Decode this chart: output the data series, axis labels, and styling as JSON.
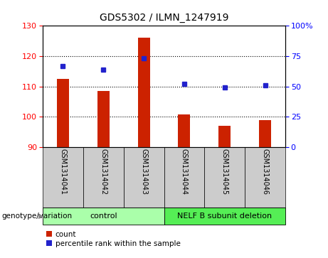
{
  "title": "GDS5302 / ILMN_1247919",
  "categories": [
    "GSM1314041",
    "GSM1314042",
    "GSM1314043",
    "GSM1314044",
    "GSM1314045",
    "GSM1314046"
  ],
  "bar_values": [
    112.5,
    108.5,
    126.0,
    100.7,
    97.0,
    99.0
  ],
  "percentile_values": [
    67,
    64,
    73,
    52,
    49,
    51
  ],
  "bar_color": "#cc2200",
  "dot_color": "#2222cc",
  "ylim_left": [
    90,
    130
  ],
  "ylim_right": [
    0,
    100
  ],
  "yticks_left": [
    90,
    100,
    110,
    120,
    130
  ],
  "yticks_right": [
    0,
    25,
    50,
    75,
    100
  ],
  "yticklabels_right": [
    "0",
    "25",
    "50",
    "75",
    "100%"
  ],
  "grid_values": [
    100,
    110,
    120
  ],
  "groups": [
    {
      "label": "control",
      "indices": [
        0,
        1,
        2
      ],
      "color": "#aaffaa"
    },
    {
      "label": "NELF B subunit deletion",
      "indices": [
        3,
        4,
        5
      ],
      "color": "#55ee55"
    }
  ],
  "group_row_label": "genotype/variation",
  "legend_count_label": "count",
  "legend_percentile_label": "percentile rank within the sample",
  "tick_bg_color": "#cccccc",
  "bar_width": 0.3,
  "figsize": [
    4.61,
    3.63
  ],
  "dpi": 100
}
